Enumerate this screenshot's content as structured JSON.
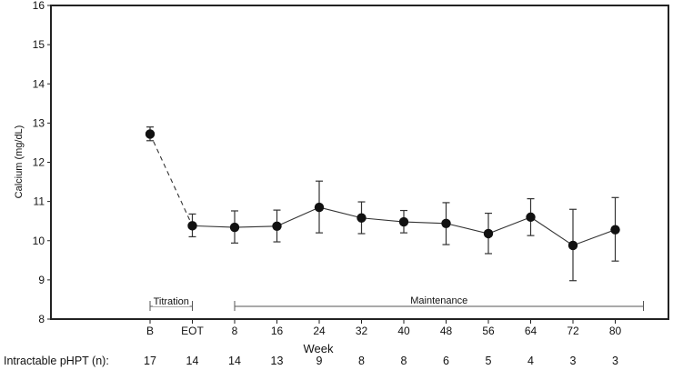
{
  "chart_data": {
    "type": "line",
    "title": "",
    "xlabel": "Week",
    "ylabel": "Calcium (mg/dL)",
    "ylim": [
      8,
      16
    ],
    "yticks": [
      "8",
      "9",
      "10",
      "11",
      "12",
      "13",
      "14",
      "15",
      "16"
    ],
    "categories": [
      "B",
      "EOT",
      "8",
      "16",
      "24",
      "32",
      "40",
      "48",
      "56",
      "64",
      "72",
      "80"
    ],
    "series": [
      {
        "name": "Calcium",
        "values": [
          12.72,
          10.38,
          10.34,
          10.37,
          10.85,
          10.58,
          10.48,
          10.44,
          10.18,
          10.6,
          9.88,
          10.28
        ],
        "error_high": [
          12.9,
          10.68,
          10.76,
          10.78,
          11.52,
          10.99,
          10.77,
          10.97,
          10.7,
          11.07,
          10.8,
          11.1
        ],
        "error_low": [
          12.55,
          10.1,
          9.94,
          9.97,
          10.2,
          10.18,
          10.2,
          9.9,
          9.67,
          10.13,
          8.98,
          9.48
        ],
        "line_style_segments": [
          "dashed",
          "solid",
          "solid",
          "solid",
          "solid",
          "solid",
          "solid",
          "solid",
          "solid",
          "solid",
          "solid"
        ]
      }
    ],
    "phases": [
      {
        "label": "Titration",
        "from": "B",
        "to": "EOT"
      },
      {
        "label": "Maintenance",
        "from": "8",
        "to": "after 80"
      }
    ],
    "n_row": {
      "label": "Intractable pHPT (n):",
      "values": [
        "17",
        "14",
        "14",
        "13",
        "9",
        "8",
        "8",
        "6",
        "5",
        "4",
        "3",
        "3"
      ]
    },
    "grid": false
  }
}
